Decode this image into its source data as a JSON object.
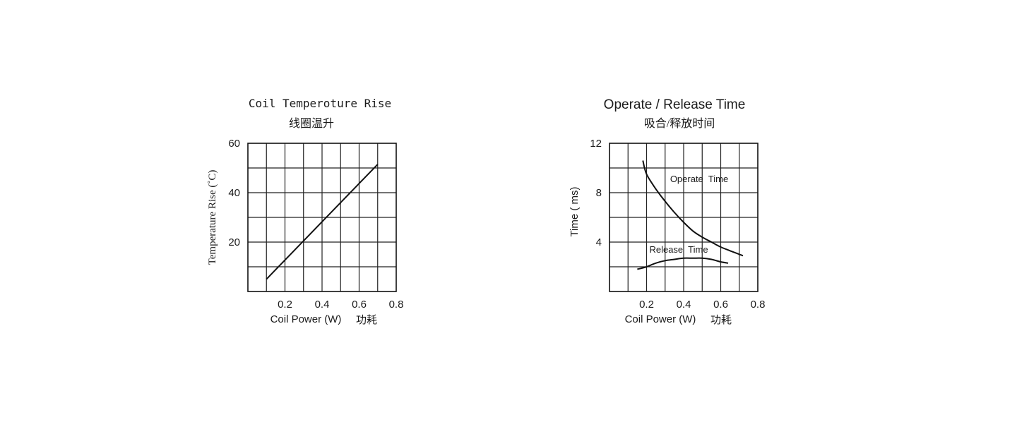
{
  "chart_data": [
    {
      "type": "line",
      "title": "Coil Temperoture Rise",
      "subtitle": "线圈温升",
      "xlabel": "Coil Power (W)",
      "xlabel_cn": "功耗",
      "ylabel": "Temperature Rise (˚C)",
      "xlim": [
        0,
        0.8
      ],
      "ylim": [
        0,
        60
      ],
      "x_ticks": [
        0.2,
        0.4,
        0.6,
        0.8
      ],
      "x_tick_labels": [
        "0.2",
        "0.4",
        "0.6",
        "0.8"
      ],
      "y_ticks": [
        20,
        40,
        60
      ],
      "y_tick_labels": [
        "20",
        "40",
        "60"
      ],
      "grid": true,
      "series": [
        {
          "x": [
            0.1,
            0.7
          ],
          "y": [
            5,
            51.5
          ]
        }
      ]
    },
    {
      "type": "line",
      "title": "Operate / Release Time",
      "subtitle": "吸合/释放时间",
      "xlabel": "Coil Power (W)",
      "xlabel_cn": "功耗",
      "ylabel": "Time ( ms)",
      "xlim": [
        0,
        0.8
      ],
      "ylim": [
        0,
        12
      ],
      "x_ticks": [
        0.2,
        0.4,
        0.6,
        0.8
      ],
      "x_tick_labels": [
        "0.2",
        "0.4",
        "0.6",
        "0.8"
      ],
      "y_ticks": [
        4,
        8,
        12
      ],
      "y_tick_labels": [
        "4",
        "8",
        "12"
      ],
      "grid": true,
      "series": [
        {
          "name": "Operate  Time",
          "x": [
            0.18,
            0.2,
            0.25,
            0.3,
            0.35,
            0.4,
            0.45,
            0.5,
            0.55,
            0.6,
            0.65,
            0.72
          ],
          "y": [
            10.6,
            9.5,
            8.3,
            7.3,
            6.4,
            5.6,
            4.9,
            4.4,
            4.0,
            3.6,
            3.3,
            2.9
          ]
        },
        {
          "name": "Release  Time",
          "x": [
            0.15,
            0.2,
            0.25,
            0.3,
            0.35,
            0.4,
            0.45,
            0.5,
            0.55,
            0.6,
            0.64
          ],
          "y": [
            1.8,
            2.0,
            2.3,
            2.5,
            2.6,
            2.7,
            2.7,
            2.7,
            2.6,
            2.4,
            2.3
          ]
        }
      ]
    }
  ]
}
